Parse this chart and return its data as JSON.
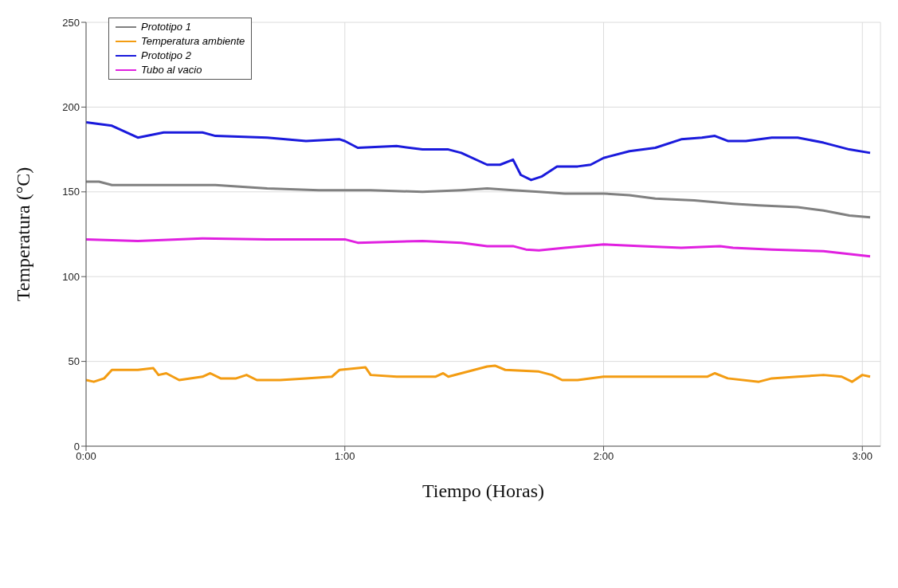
{
  "chart_data": {
    "type": "line",
    "xlabel": "Tiempo (Horas)",
    "ylabel": "Temperatura (°C)",
    "xlim": [
      0,
      3.07
    ],
    "xticks": [
      {
        "value": 0,
        "label": "0:00"
      },
      {
        "value": 1,
        "label": "1:00"
      },
      {
        "value": 2,
        "label": "2:00"
      },
      {
        "value": 3,
        "label": "3:00"
      }
    ],
    "ylim": [
      0,
      250
    ],
    "yticks": [
      0,
      50,
      100,
      150,
      200,
      250
    ],
    "grid": true,
    "legend": "top left",
    "marker": "none",
    "line_style": "solid",
    "series": [
      {
        "name": "Prototipo 1",
        "color": "#808080",
        "x": [
          0,
          0.05,
          0.1,
          0.3,
          0.5,
          0.7,
          0.9,
          1.1,
          1.3,
          1.45,
          1.55,
          1.65,
          1.75,
          1.85,
          2.0,
          2.1,
          2.2,
          2.35,
          2.5,
          2.6,
          2.75,
          2.85,
          2.95,
          3.03
        ],
        "values": [
          156,
          156,
          154,
          154,
          154,
          152,
          151,
          151,
          150,
          151,
          152,
          151,
          150,
          149,
          149,
          148,
          146,
          145,
          143,
          142,
          141,
          139,
          136,
          135
        ]
      },
      {
        "name": "Temperatura ambiente",
        "color": "#f39c12",
        "x": [
          0,
          0.03,
          0.07,
          0.1,
          0.2,
          0.26,
          0.28,
          0.31,
          0.36,
          0.45,
          0.48,
          0.52,
          0.58,
          0.62,
          0.66,
          0.75,
          0.85,
          0.95,
          0.98,
          1.05,
          1.08,
          1.1,
          1.2,
          1.35,
          1.38,
          1.4,
          1.55,
          1.58,
          1.62,
          1.75,
          1.8,
          1.84,
          1.9,
          2.0,
          2.2,
          2.4,
          2.43,
          2.48,
          2.6,
          2.65,
          2.75,
          2.85,
          2.92,
          2.96,
          3.0,
          3.03
        ],
        "values": [
          39,
          38,
          40,
          45,
          45,
          46,
          42,
          43,
          39,
          41,
          43,
          40,
          40,
          42,
          39,
          39,
          40,
          41,
          45,
          46,
          46.5,
          42,
          41,
          41,
          43,
          41,
          47,
          47.5,
          45,
          44,
          42,
          39,
          39,
          41,
          41,
          41,
          43,
          40,
          38,
          40,
          41,
          42,
          41,
          38,
          42,
          41
        ]
      },
      {
        "name": "Prototipo 2",
        "color": "#1a1adc",
        "x": [
          0,
          0.1,
          0.2,
          0.3,
          0.45,
          0.5,
          0.7,
          0.85,
          0.98,
          1.0,
          1.05,
          1.2,
          1.3,
          1.4,
          1.45,
          1.55,
          1.6,
          1.65,
          1.68,
          1.72,
          1.76,
          1.82,
          1.9,
          1.95,
          2.0,
          2.1,
          2.2,
          2.3,
          2.38,
          2.43,
          2.48,
          2.55,
          2.65,
          2.75,
          2.85,
          2.95,
          3.03
        ],
        "values": [
          191,
          189,
          182,
          185,
          185,
          183,
          182,
          180,
          181,
          180,
          176,
          177,
          175,
          175,
          173,
          166,
          166,
          169,
          160,
          157,
          159,
          165,
          165,
          166,
          170,
          174,
          176,
          181,
          182,
          183,
          180,
          180,
          182,
          182,
          179,
          175,
          173
        ]
      },
      {
        "name": "Tubo al vacio",
        "color": "#e020e0",
        "x": [
          0,
          0.2,
          0.45,
          0.7,
          1.0,
          1.05,
          1.3,
          1.45,
          1.55,
          1.65,
          1.7,
          1.75,
          1.85,
          2.0,
          2.15,
          2.3,
          2.45,
          2.5,
          2.65,
          2.85,
          3.03
        ],
        "values": [
          122,
          121,
          122.5,
          122,
          122,
          120,
          121,
          120,
          118,
          118,
          116,
          115.5,
          117,
          119,
          118,
          117,
          118,
          117,
          116,
          115,
          112
        ]
      }
    ]
  }
}
